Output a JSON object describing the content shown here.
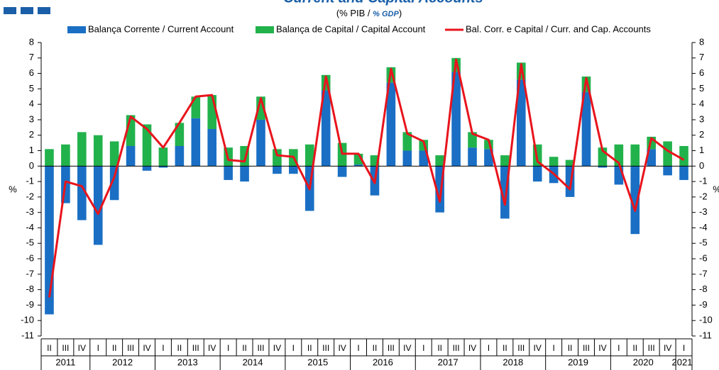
{
  "chart_data": {
    "type": "bar",
    "title": "Current and Capital Accounts",
    "subtitle": [
      "(% PIB / ",
      "% GDP",
      ")"
    ],
    "y_label": "%",
    "categories": [
      "II",
      "III",
      "IV",
      "I",
      "II",
      "III",
      "IV",
      "I",
      "II",
      "III",
      "IV",
      "I",
      "II",
      "III",
      "IV",
      "I",
      "II",
      "III",
      "IV",
      "I",
      "II",
      "III",
      "IV",
      "I",
      "II",
      "III",
      "IV",
      "I",
      "II",
      "III",
      "IV",
      "I",
      "II",
      "III",
      "IV",
      "I",
      "II",
      "III",
      "IV",
      "I"
    ],
    "years": [
      "2011",
      "2012",
      "2013",
      "2014",
      "2015",
      "2016",
      "2017",
      "2018",
      "2019",
      "2020",
      "2021"
    ],
    "series": [
      {
        "name": "Balança Corrente / Current Account",
        "color": "#1a6fc4",
        "values": [
          -9.6,
          -2.4,
          -3.5,
          -5.1,
          -2.2,
          1.3,
          -0.3,
          -0.1,
          1.3,
          3.1,
          2.4,
          -0.9,
          -1.0,
          3.0,
          -0.5,
          -0.5,
          -2.9,
          4.9,
          -0.7,
          0.1,
          -1.9,
          5.4,
          1.0,
          1.0,
          -3.0,
          6.1,
          1.2,
          1.1,
          -3.4,
          5.6,
          -1.0,
          -1.1,
          -2.0,
          4.8,
          -0.1,
          -1.2,
          -4.4,
          1.1,
          -0.6,
          -0.9
        ]
      },
      {
        "name": "Balança de Capital / Capital Account",
        "color": "#22b24c",
        "values": [
          1.1,
          1.4,
          2.2,
          2.0,
          1.6,
          2.0,
          2.7,
          1.2,
          1.5,
          1.4,
          2.2,
          1.2,
          1.3,
          1.5,
          1.1,
          1.1,
          1.4,
          1.0,
          1.5,
          0.7,
          0.7,
          1.0,
          1.2,
          0.7,
          0.7,
          0.9,
          1.0,
          0.6,
          0.7,
          1.1,
          1.4,
          0.6,
          0.4,
          1.0,
          1.2,
          1.4,
          1.4,
          0.8,
          1.6,
          1.3
        ]
      },
      {
        "name": "Bal. Corr. e Capital / Curr. and Cap. Accounts",
        "color": "#e8141c",
        "type": "line",
        "values": [
          -8.5,
          -1.0,
          -1.3,
          -3.1,
          -0.7,
          3.2,
          2.4,
          1.2,
          2.8,
          4.5,
          4.6,
          0.4,
          0.3,
          4.4,
          0.7,
          0.6,
          -1.5,
          5.8,
          0.8,
          0.8,
          -1.1,
          6.3,
          2.1,
          1.6,
          -2.3,
          6.9,
          2.1,
          1.7,
          -2.5,
          6.6,
          0.3,
          -0.5,
          -1.5,
          5.7,
          1.0,
          0.2,
          -2.9,
          1.8,
          1.0,
          0.4
        ]
      }
    ],
    "ylim": [
      -11,
      8
    ],
    "yticks": [
      -11,
      -10,
      -9,
      -8,
      -7,
      -6,
      -5,
      -4,
      -3,
      -2,
      -1,
      0,
      1,
      2,
      3,
      4,
      5,
      6,
      7,
      8
    ]
  }
}
